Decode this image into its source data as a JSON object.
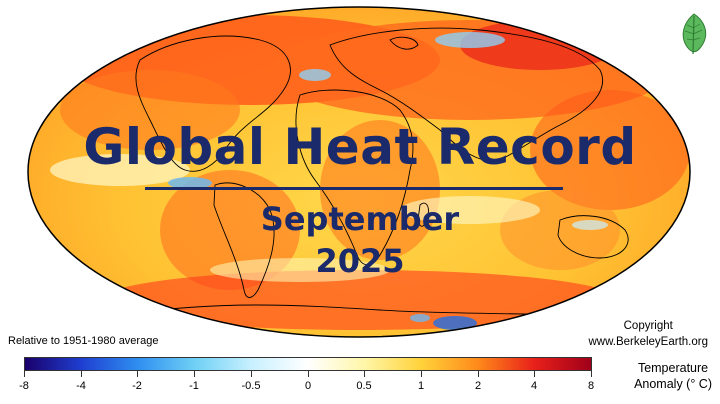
{
  "title": "Global Heat Record",
  "month": "September",
  "year": "2025",
  "note": "Relative to 1951-1980 average",
  "copyright": {
    "line1": "Copyright",
    "line2": "www.BerkeleyEarth.org"
  },
  "colorbar": {
    "title_line1": "Temperature",
    "title_line2": "Anomaly (° C)",
    "ticks": [
      "-8",
      "-4",
      "-2",
      "-1",
      "-0.5",
      "0",
      "0.5",
      "1",
      "2",
      "4",
      "8"
    ],
    "colors": [
      "#1a006b",
      "#1f3fd1",
      "#2f8ff0",
      "#6fd0f5",
      "#c8f0ff",
      "#ffffff",
      "#fff6a8",
      "#ffd23a",
      "#ff8a1a",
      "#e8201a",
      "#a0001a"
    ]
  },
  "icons": {
    "logo": "leaf-icon"
  }
}
